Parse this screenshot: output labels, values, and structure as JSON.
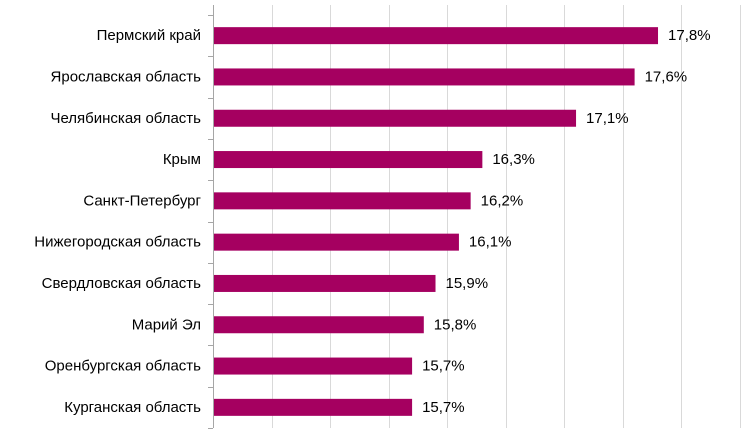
{
  "chart_data": {
    "type": "bar",
    "orientation": "horizontal",
    "title": "",
    "xlabel": "",
    "ylabel": "",
    "categories": [
      "Пермский край",
      "Ярославская область",
      "Челябинская область",
      "Крым",
      "Санкт-Петербург",
      "Нижегородская область",
      "Свердловская область",
      "Марий Эл",
      "Оренбургская область",
      "Курганская область"
    ],
    "values": [
      17.8,
      17.6,
      17.1,
      16.3,
      16.2,
      16.1,
      15.9,
      15.8,
      15.7,
      15.7
    ],
    "data_labels": [
      "17,8%",
      "17,6%",
      "17,1%",
      "16,3%",
      "16,2%",
      "16,1%",
      "15,9%",
      "15,8%",
      "15,7%",
      "15,7%"
    ],
    "xlim": [
      14.0,
      18.5
    ],
    "x_grid_step": 0.5,
    "grid": true,
    "legend": "none",
    "colors": {
      "bar": "#A50060",
      "grid": "#D9D9D9",
      "axis": "#A6A6A6",
      "text": "#000000"
    }
  }
}
